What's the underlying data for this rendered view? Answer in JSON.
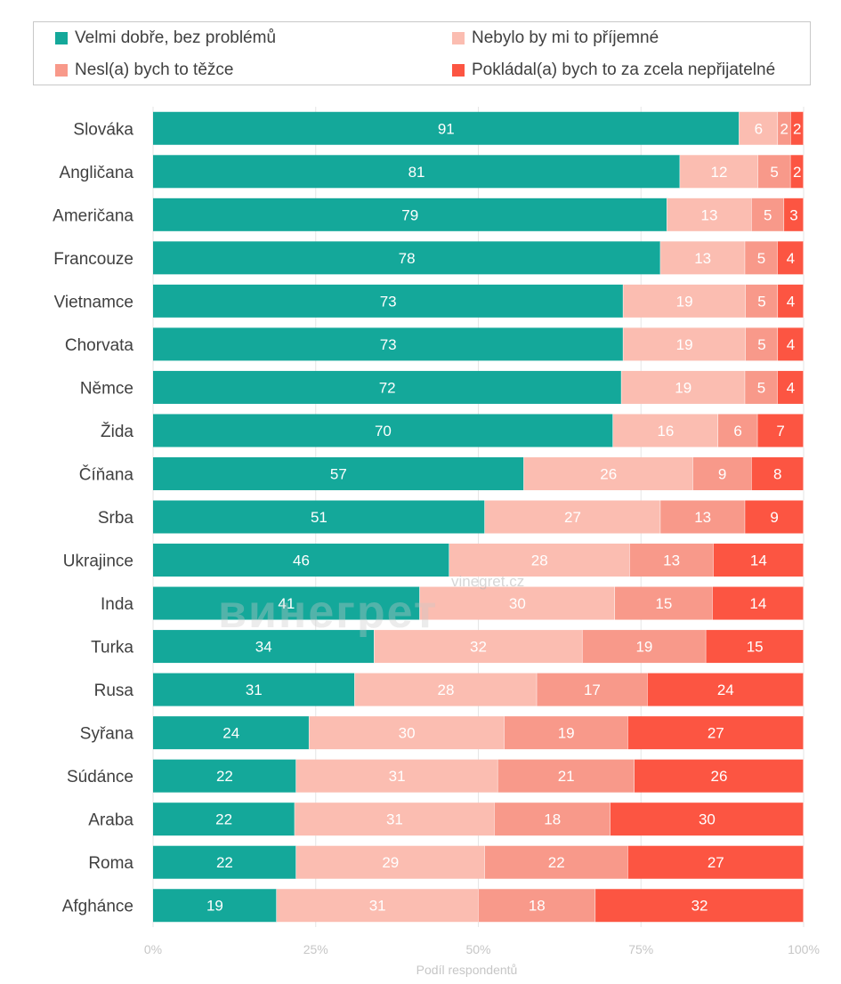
{
  "chart_data": {
    "type": "bar",
    "orientation": "horizontal-stacked-100",
    "categories": [
      "Slováka",
      "Angličana",
      "Američana",
      "Francouze",
      "Vietnamce",
      "Chorvata",
      "Němce",
      "Žida",
      "Číňana",
      "Srba",
      "Ukrajince",
      "Inda",
      "Turka",
      "Rusa",
      "Syřana",
      "Súdánce",
      "Araba",
      "Roma",
      "Afghánce"
    ],
    "series": [
      {
        "name": "Velmi dobře, bez problémů",
        "color": "#14a89a",
        "values": [
          91,
          81,
          79,
          78,
          73,
          73,
          72,
          70,
          57,
          51,
          46,
          41,
          34,
          31,
          24,
          22,
          22,
          22,
          19
        ]
      },
      {
        "name": "Nebylo by mi to příjemné",
        "color": "#fbbdb1",
        "values": [
          6,
          12,
          13,
          13,
          19,
          19,
          19,
          16,
          26,
          27,
          28,
          30,
          32,
          28,
          30,
          31,
          31,
          29,
          31
        ]
      },
      {
        "name": "Nesl(a) bych to těžce",
        "color": "#f8998a",
        "values": [
          2,
          5,
          5,
          5,
          5,
          5,
          5,
          6,
          9,
          13,
          13,
          15,
          19,
          17,
          19,
          21,
          18,
          22,
          18
        ]
      },
      {
        "name": "Pokládal(a) bych to za zcela nepřijatelné",
        "color": "#fc5542",
        "values": [
          2,
          2,
          3,
          4,
          4,
          4,
          4,
          7,
          8,
          9,
          14,
          14,
          15,
          24,
          27,
          26,
          30,
          27,
          32
        ]
      }
    ],
    "xlabel": "Podíl respondentů",
    "xticks": [
      "0%",
      "25%",
      "50%",
      "75%",
      "100%"
    ],
    "xlim": [
      0,
      100
    ],
    "legend": "top",
    "grid": true
  },
  "watermark": {
    "text": "винегрет",
    "url": "vinegret.cz"
  }
}
